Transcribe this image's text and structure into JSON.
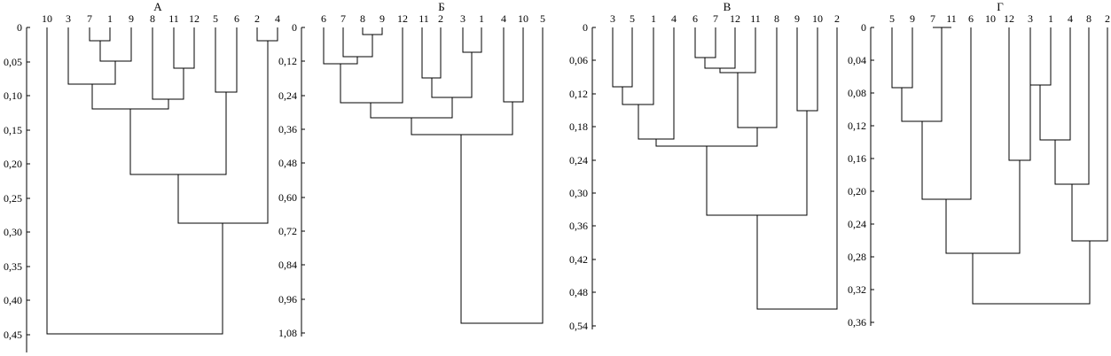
{
  "panels": [
    {
      "key": "A",
      "title": "А",
      "ticks": [
        "0",
        "0,05",
        "0,10",
        "0,15",
        "0,20",
        "0,25",
        "0,30",
        "0,35",
        "0,40",
        "0,45"
      ],
      "axis_max": 0.45,
      "leaves": [
        "10",
        "3",
        "7",
        "1",
        "9",
        "8",
        "11",
        "12",
        "5",
        "6",
        "2",
        "4"
      ],
      "merges": [
        {
          "left": "7",
          "right": "1",
          "height": 0.02
        },
        {
          "left": "2",
          "right": "4",
          "height": 0.02
        },
        {
          "left": "7+1",
          "right": "9",
          "height": 0.05
        },
        {
          "left": "11",
          "right": "12",
          "height": 0.06
        },
        {
          "left": "3",
          "right": "7+1+9",
          "height": 0.083
        },
        {
          "left": "5",
          "right": "6",
          "height": 0.095
        },
        {
          "left": "8",
          "right": "11+12",
          "height": 0.105
        },
        {
          "left": "3+7+1+9",
          "right": "8+11+12",
          "height": 0.12
        },
        {
          "left": "3..12",
          "right": "5+6",
          "height": 0.215
        },
        {
          "left": "3..6",
          "right": "2+4",
          "height": 0.28
        },
        {
          "left": "10",
          "right": "3..4",
          "height": 0.44
        }
      ]
    },
    {
      "key": "B",
      "title": "Б",
      "ticks": [
        "0",
        "0,12",
        "0,24",
        "0,36",
        "0,48",
        "0,60",
        "0,72",
        "0,84",
        "0,96",
        "1,08"
      ],
      "axis_max": 1.08,
      "leaves": [
        "6",
        "7",
        "8",
        "9",
        "12",
        "11",
        "2",
        "3",
        "1",
        "4",
        "10",
        "5"
      ],
      "merges": [
        {
          "left": "8",
          "right": "9",
          "height": 0.03
        },
        {
          "left": "3",
          "right": "1",
          "height": 0.09
        },
        {
          "left": "7",
          "right": "8+9",
          "height": 0.1
        },
        {
          "left": "6",
          "right": "7+8+9",
          "height": 0.13
        },
        {
          "left": "11",
          "right": "2",
          "height": 0.18
        },
        {
          "left": "11+2",
          "right": "3+1",
          "height": 0.25
        },
        {
          "left": "6..9",
          "right": "12",
          "height": 0.27
        },
        {
          "left": "4",
          "right": "10",
          "height": 0.26
        },
        {
          "left": "6..12",
          "right": "11..1",
          "height": 0.32
        },
        {
          "left": "6..1",
          "right": "4+10",
          "height": 0.38
        },
        {
          "left": "6..10",
          "right": "5",
          "height": 1.04
        }
      ]
    },
    {
      "key": "C",
      "title": "В",
      "ticks": [
        "0",
        "0,06",
        "0,12",
        "0,18",
        "0,24",
        "0,30",
        "0,36",
        "0,42",
        "0,48",
        "0,54"
      ],
      "axis_max": 0.54,
      "leaves": [
        "3",
        "5",
        "1",
        "4",
        "6",
        "7",
        "12",
        "11",
        "8",
        "9",
        "10",
        "2"
      ],
      "merges": [
        {
          "left": "6",
          "right": "7",
          "height": 0.055
        },
        {
          "left": "6+7",
          "right": "12",
          "height": 0.075
        },
        {
          "left": "6+7+12",
          "right": "11",
          "height": 0.082
        },
        {
          "left": "3",
          "right": "5",
          "height": 0.11
        },
        {
          "left": "3+5",
          "right": "1",
          "height": 0.14
        },
        {
          "left": "9",
          "right": "10",
          "height": 0.15
        },
        {
          "left": "6..11",
          "right": "8",
          "height": 0.182
        },
        {
          "left": "3+5+1",
          "right": "4",
          "height": 0.2
        },
        {
          "left": "3..4",
          "right": "6..8",
          "height": 0.215
        },
        {
          "left": "3..8",
          "right": "9+10",
          "height": 0.345
        },
        {
          "left": "3..10",
          "right": "2",
          "height": 0.515
        }
      ]
    },
    {
      "key": "D",
      "title": "Г",
      "ticks": [
        "0",
        "0,04",
        "0,08",
        "0,12",
        "0,16",
        "0,20",
        "0,24",
        "0,28",
        "0,32",
        "0,36"
      ],
      "axis_max": 0.36,
      "leaves": [
        "5",
        "9",
        "7",
        "11",
        "6",
        "10",
        "12",
        "3",
        "1",
        "4",
        "8",
        "2"
      ],
      "merges": [
        {
          "left": "7",
          "right": "11",
          "height": 0.0
        },
        {
          "left": "3",
          "right": "1",
          "height": 0.072
        },
        {
          "left": "5",
          "right": "9",
          "height": 0.075
        },
        {
          "left": "5+9",
          "right": "7+11",
          "height": 0.115
        },
        {
          "left": "3+1",
          "right": "4",
          "height": 0.14
        },
        {
          "left": "10",
          "right": "12",
          "height": 0.162
        },
        {
          "left": "3+1+4",
          "right": "8",
          "height": 0.19
        },
        {
          "left": "5..11",
          "right": "6",
          "height": 0.21
        },
        {
          "left": "3..8",
          "right": "2",
          "height": 0.26
        },
        {
          "left": "5..6",
          "right": "10+12",
          "height": 0.275
        },
        {
          "left": "5..12",
          "right": "3..2",
          "height": 0.34
        }
      ]
    }
  ]
}
